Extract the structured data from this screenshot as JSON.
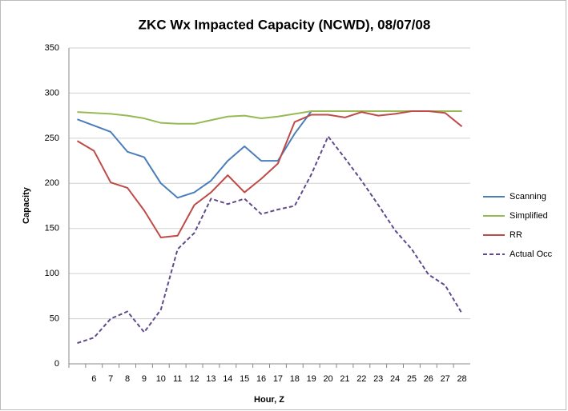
{
  "chart_data": {
    "type": "line",
    "title": "ZKC Wx Impacted Capacity (NCWD), 08/07/08",
    "x_label": "Hour, Z",
    "y_label": "Capacity",
    "categories": [
      null,
      "6",
      "7",
      "8",
      "9",
      "10",
      "11",
      "12",
      "13",
      "14",
      "15",
      "16",
      "17",
      "18",
      "19",
      "20",
      "21",
      "22",
      "23",
      "24",
      "25",
      "26",
      "27",
      "28"
    ],
    "ylim": [
      0,
      350
    ],
    "yticks": [
      0,
      50,
      100,
      150,
      200,
      250,
      300,
      350
    ],
    "grid": true,
    "legend": "right",
    "series": [
      {
        "name": "Scanning",
        "color": "#4a7ebb",
        "dashed": false,
        "values": [
          271,
          264,
          257,
          235,
          229,
          200,
          184,
          190,
          203,
          225,
          241,
          225,
          225,
          255,
          280,
          280,
          280,
          280,
          280,
          280,
          280,
          280,
          280,
          280
        ]
      },
      {
        "name": "Simplified",
        "color": "#98b954",
        "dashed": false,
        "values": [
          279,
          278,
          277,
          275,
          272,
          267,
          266,
          266,
          270,
          274,
          275,
          272,
          274,
          277,
          280,
          280,
          280,
          280,
          280,
          280,
          280,
          280,
          280,
          280
        ]
      },
      {
        "name": "RR",
        "color": "#be4b48",
        "dashed": false,
        "values": [
          247,
          236,
          201,
          195,
          170,
          140,
          142,
          176,
          190,
          209,
          190,
          205,
          222,
          268,
          276,
          276,
          273,
          279,
          275,
          277,
          280,
          280,
          278,
          263
        ]
      },
      {
        "name": "Actual Occ",
        "color": "#5f4b8b",
        "dashed": true,
        "values": [
          23,
          29,
          50,
          58,
          35,
          60,
          127,
          145,
          183,
          177,
          183,
          166,
          171,
          175,
          210,
          252,
          228,
          203,
          176,
          148,
          127,
          99,
          87,
          56
        ]
      }
    ]
  }
}
